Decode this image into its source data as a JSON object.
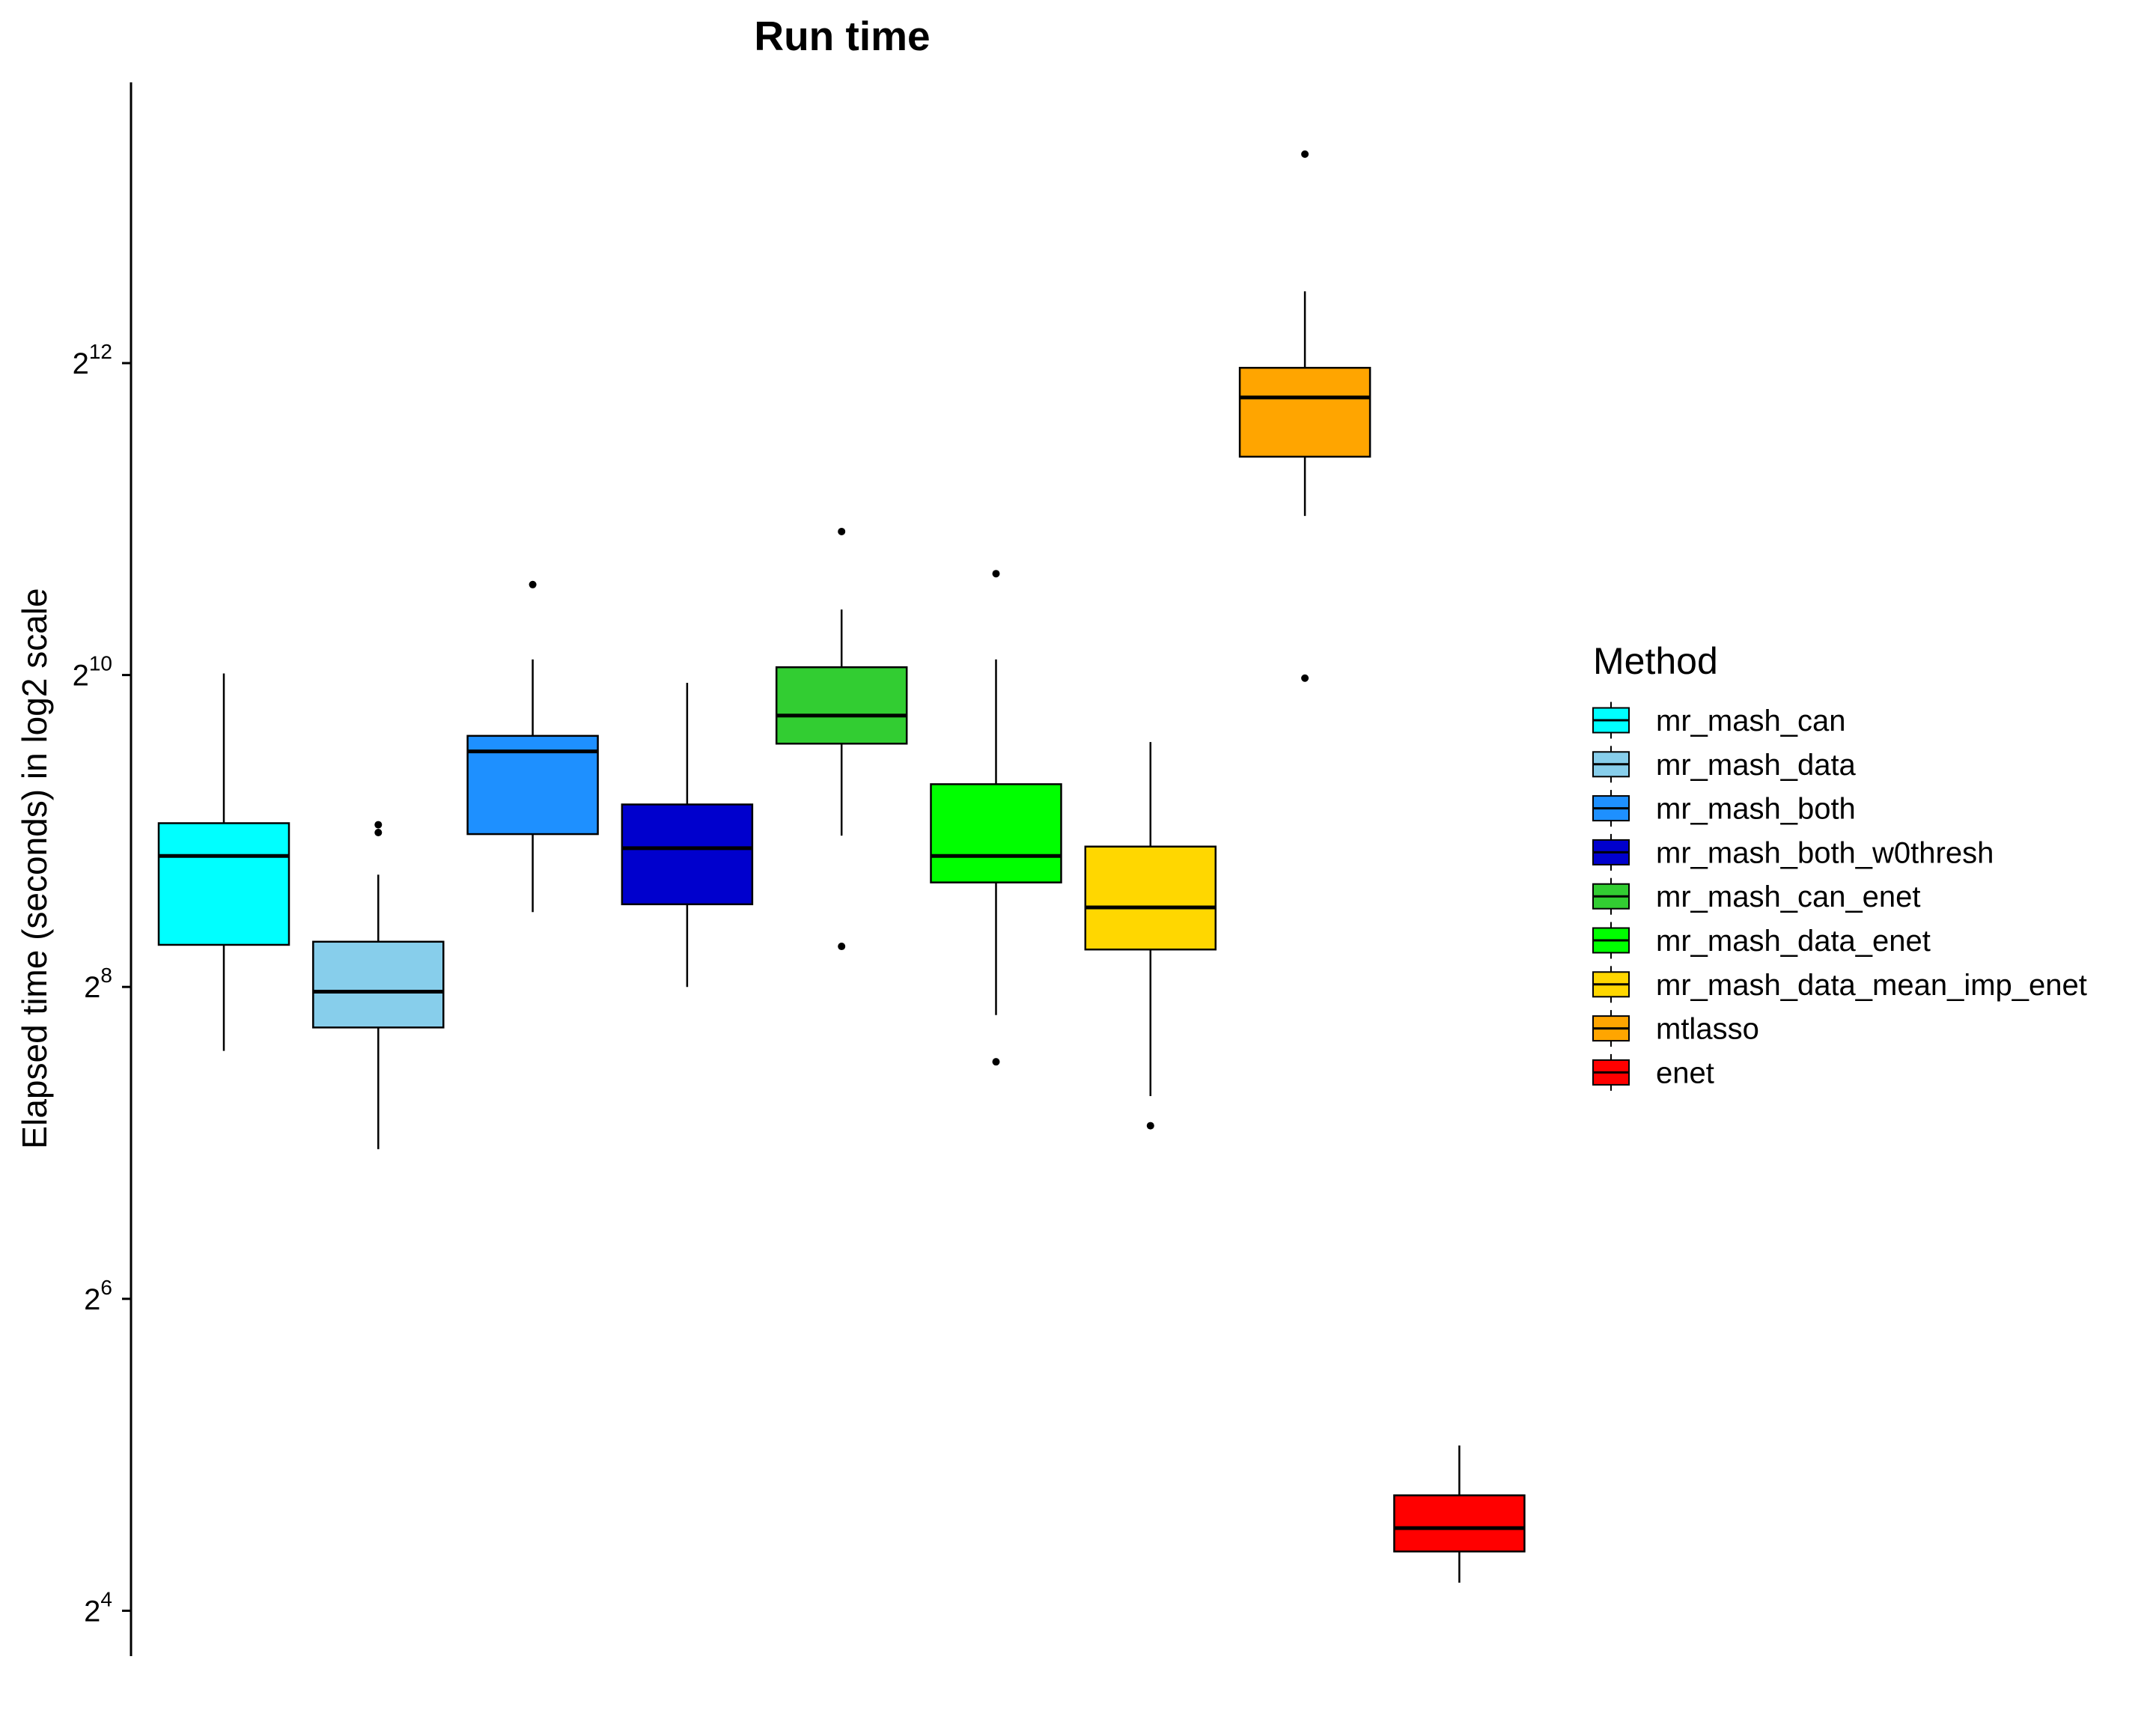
{
  "chart_data": {
    "type": "box",
    "title": "Run time",
    "ylabel": "Elapsed time (seconds) in log2 scale",
    "xlabel": "",
    "y_scale": "log2",
    "ylim_log2": [
      3.85,
      14.0
    ],
    "y_ticks": [
      {
        "base": "2",
        "exp": "4",
        "log2": 4
      },
      {
        "base": "2",
        "exp": "6",
        "log2": 6
      },
      {
        "base": "2",
        "exp": "8",
        "log2": 8
      },
      {
        "base": "2",
        "exp": "10",
        "log2": 10
      },
      {
        "base": "2",
        "exp": "12",
        "log2": 12
      }
    ],
    "grid": false,
    "legend": {
      "title": "Method",
      "position": "right"
    },
    "series": [
      {
        "name": "mr_mash_can",
        "color": "#00FFFF",
        "whisker_low_log2": 7.59,
        "q1_log2": 8.27,
        "median_log2": 8.84,
        "q3_log2": 9.05,
        "whisker_high_log2": 10.01,
        "outliers_log2": []
      },
      {
        "name": "mr_mash_data",
        "color": "#87CEEB",
        "whisker_low_log2": 6.96,
        "q1_log2": 7.74,
        "median_log2": 7.97,
        "q3_log2": 8.29,
        "whisker_high_log2": 8.72,
        "outliers_log2": [
          8.99,
          9.04
        ]
      },
      {
        "name": "mr_mash_both",
        "color": "#1E90FF",
        "whisker_low_log2": 8.48,
        "q1_log2": 8.98,
        "median_log2": 9.51,
        "q3_log2": 9.61,
        "whisker_high_log2": 10.1,
        "outliers_log2": [
          10.58
        ]
      },
      {
        "name": "mr_mash_both_w0thresh",
        "color": "#0000CD",
        "whisker_low_log2": 8.0,
        "q1_log2": 8.53,
        "median_log2": 8.89,
        "q3_log2": 9.17,
        "whisker_high_log2": 9.95,
        "outliers_log2": []
      },
      {
        "name": "mr_mash_can_enet",
        "color": "#32CD32",
        "whisker_low_log2": 8.97,
        "q1_log2": 9.56,
        "median_log2": 9.74,
        "q3_log2": 10.05,
        "whisker_high_log2": 10.42,
        "outliers_log2": [
          8.26,
          10.92
        ]
      },
      {
        "name": "mr_mash_data_enet",
        "color": "#00FF00",
        "whisker_low_log2": 7.82,
        "q1_log2": 8.67,
        "median_log2": 8.84,
        "q3_log2": 9.3,
        "whisker_high_log2": 10.1,
        "outliers_log2": [
          7.52,
          10.65
        ]
      },
      {
        "name": "mr_mash_data_mean_imp_enet",
        "color": "#FFD700",
        "whisker_low_log2": 7.3,
        "q1_log2": 8.24,
        "median_log2": 8.51,
        "q3_log2": 8.9,
        "whisker_high_log2": 9.57,
        "outliers_log2": [
          7.11
        ]
      },
      {
        "name": "mtlasso",
        "color": "#FFA500",
        "whisker_low_log2": 11.02,
        "q1_log2": 11.4,
        "median_log2": 11.78,
        "q3_log2": 11.97,
        "whisker_high_log2": 12.46,
        "outliers_log2": [
          9.98,
          13.34
        ]
      },
      {
        "name": "enet",
        "color": "#FF0000",
        "whisker_low_log2": 4.18,
        "q1_log2": 4.38,
        "median_log2": 4.53,
        "q3_log2": 4.74,
        "whisker_high_log2": 5.06,
        "outliers_log2": []
      }
    ]
  }
}
